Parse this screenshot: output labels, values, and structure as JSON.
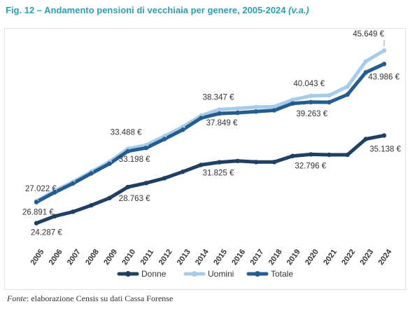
{
  "figure": {
    "title": "Fig. 12 – Andamento pensioni di vecchiaia per genere, 2005-2024",
    "title_note": "(v.a.)",
    "source_label": "Fonte",
    "source_text": ": elaborazione Censis su dati Cassa Forense"
  },
  "chart_data": {
    "type": "line",
    "title": "Fig. 12 – Andamento pensioni di vecchiaia per genere, 2005-2024 (v.a.)",
    "x": [
      2005,
      2006,
      2007,
      2008,
      2009,
      2010,
      2011,
      2012,
      2013,
      2014,
      2015,
      2016,
      2017,
      2018,
      2019,
      2020,
      2021,
      2022,
      2023,
      2024
    ],
    "xlabel": "",
    "ylabel": "",
    "ylim": [
      22000,
      48000
    ],
    "grid": false,
    "legend_position": "bottom-center",
    "series": [
      {
        "name": "Donne",
        "color": "#1f3f63",
        "values": [
          24287,
          25150,
          25700,
          26500,
          27400,
          28763,
          29250,
          29850,
          30650,
          31500,
          31825,
          31980,
          31850,
          31850,
          32600,
          32796,
          32750,
          32750,
          34700,
          35138
        ]
      },
      {
        "name": "Uomini",
        "color": "#a7cce9",
        "values": [
          27022,
          28300,
          29400,
          30650,
          31900,
          33488,
          33950,
          35050,
          36200,
          37600,
          38347,
          38480,
          38650,
          38700,
          39550,
          40043,
          40100,
          41200,
          44300,
          45649
        ]
      },
      {
        "name": "Totale",
        "color": "#245c8f",
        "values": [
          26891,
          28100,
          29200,
          30450,
          31650,
          33198,
          33600,
          34700,
          35850,
          37300,
          37849,
          37950,
          38100,
          38250,
          39100,
          39263,
          39250,
          40200,
          42950,
          43986
        ]
      }
    ],
    "annotations": [
      {
        "series": "Uomini",
        "year": 2005,
        "label": "27.022 €"
      },
      {
        "series": "Totale",
        "year": 2005,
        "label": "26.891 €"
      },
      {
        "series": "Donne",
        "year": 2005,
        "label": "24.287 €"
      },
      {
        "series": "Uomini",
        "year": 2010,
        "label": "33.488 €"
      },
      {
        "series": "Totale",
        "year": 2010,
        "label": "33.198 €"
      },
      {
        "series": "Donne",
        "year": 2010,
        "label": "28.763 €"
      },
      {
        "series": "Uomini",
        "year": 2015,
        "label": "38.347 €"
      },
      {
        "series": "Totale",
        "year": 2015,
        "label": "37.849 €"
      },
      {
        "series": "Donne",
        "year": 2015,
        "label": "31.825 €"
      },
      {
        "series": "Uomini",
        "year": 2020,
        "label": "40.043 €"
      },
      {
        "series": "Totale",
        "year": 2020,
        "label": "39.263 €"
      },
      {
        "series": "Donne",
        "year": 2020,
        "label": "32.796 €"
      },
      {
        "series": "Uomini",
        "year": 2024,
        "label": "45.649 €"
      },
      {
        "series": "Totale",
        "year": 2024,
        "label": "43.986 €"
      },
      {
        "series": "Donne",
        "year": 2024,
        "label": "35.138 €"
      }
    ]
  }
}
